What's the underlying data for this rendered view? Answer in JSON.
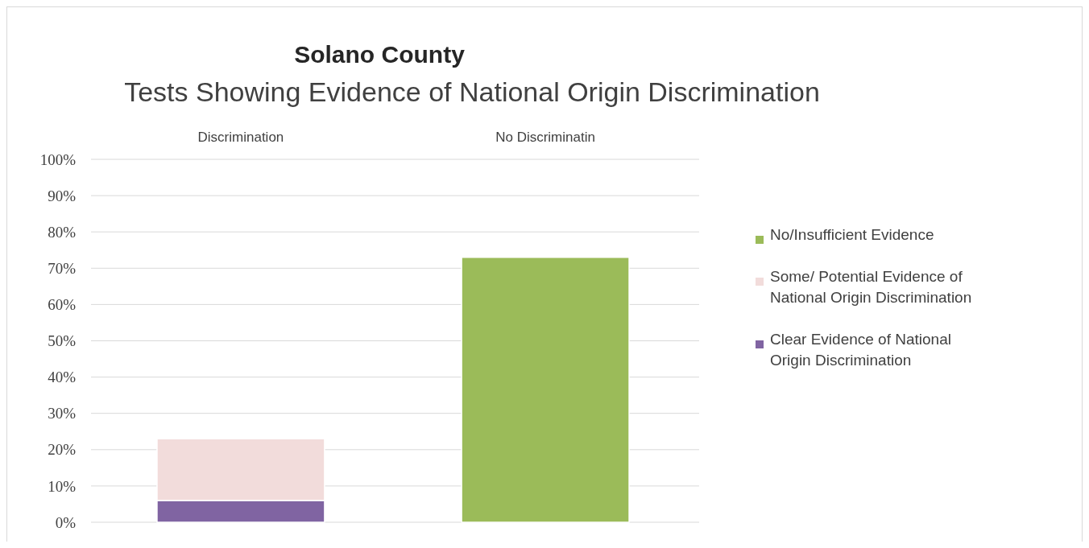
{
  "chart_data": {
    "type": "bar",
    "title": "Solano County",
    "subtitle": "Tests Showing Evidence of National Origin Discrimination",
    "categories": [
      "Discrimination",
      "No Discriminatin"
    ],
    "stacked": true,
    "series": [
      {
        "name": "Clear Evidence of National Origin Discrimination",
        "color": "#8064a2",
        "values": [
          6,
          null
        ]
      },
      {
        "name": "Some/ Potential Evidence of National Origin Discrimination",
        "color": "#f2dcdb",
        "values": [
          17,
          null
        ]
      },
      {
        "name": "No/Insufficient Evidence",
        "color": "#9bbb59",
        "values": [
          null,
          73
        ]
      }
    ],
    "ylim": [
      0,
      100
    ],
    "yticks": [
      {
        "value": 0,
        "label": "0%"
      },
      {
        "value": 10,
        "label": "10%"
      },
      {
        "value": 20,
        "label": "20%"
      },
      {
        "value": 30,
        "label": "30%"
      },
      {
        "value": 40,
        "label": "40%"
      },
      {
        "value": 50,
        "label": "50%"
      },
      {
        "value": 60,
        "label": "60%"
      },
      {
        "value": 70,
        "label": "70%"
      },
      {
        "value": 80,
        "label": "80%"
      },
      {
        "value": 90,
        "label": "90%"
      },
      {
        "value": 100,
        "label": "100%"
      }
    ],
    "grid": "y",
    "legend": "right"
  }
}
